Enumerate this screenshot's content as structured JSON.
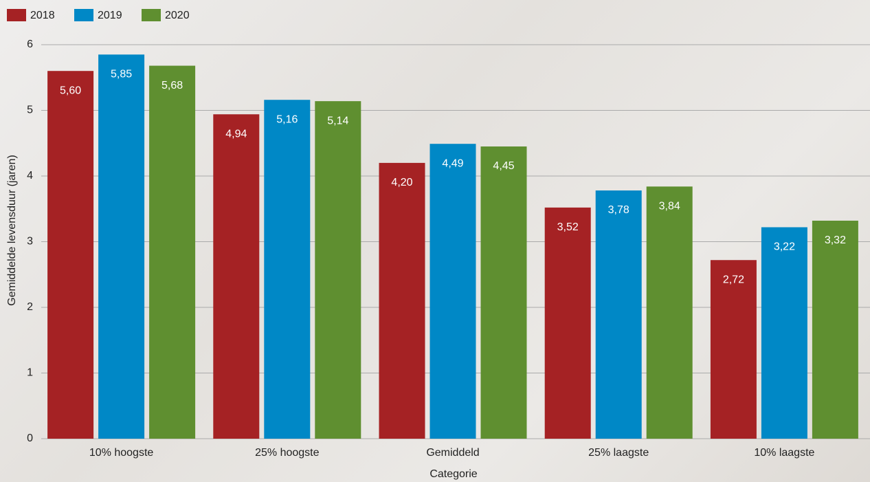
{
  "chart_data": {
    "type": "bar",
    "x_label": "Categorie",
    "y_label": "Gemiddelde levensduur (jaren)",
    "categories": [
      "10% hoogste",
      "25% hoogste",
      "Gemiddeld",
      "25% laagste",
      "10% laagste"
    ],
    "series": [
      {
        "name": "2018",
        "color": "#a52224",
        "values": [
          5.6,
          4.94,
          4.2,
          3.52,
          2.72
        ],
        "value_labels": [
          "5,60",
          "4,94",
          "4,20",
          "3,52",
          "2,72"
        ]
      },
      {
        "name": "2019",
        "color": "#0088c6",
        "values": [
          5.85,
          5.16,
          4.49,
          3.78,
          3.22
        ],
        "value_labels": [
          "5,85",
          "5,16",
          "4,49",
          "3,78",
          "3,22"
        ]
      },
      {
        "name": "2020",
        "color": "#5f8f30",
        "values": [
          5.68,
          5.14,
          4.45,
          3.84,
          3.32
        ],
        "value_labels": [
          "5,68",
          "5,14",
          "4,45",
          "3,84",
          "3,32"
        ]
      }
    ],
    "ylim": [
      0,
      6
    ],
    "yticks": [
      0,
      1,
      2,
      3,
      4,
      5,
      6
    ],
    "grid": true,
    "legend": "top-left"
  }
}
